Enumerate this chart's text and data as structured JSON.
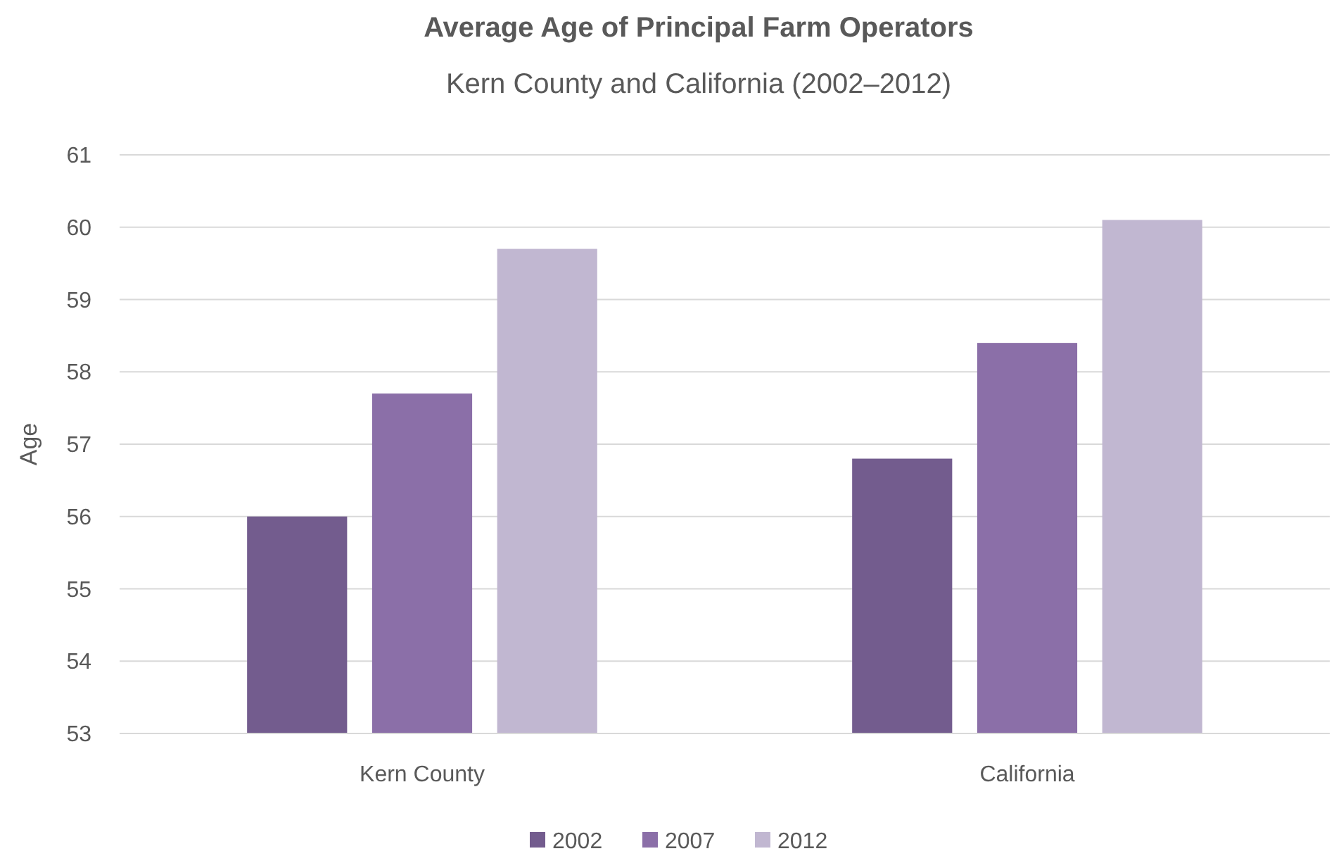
{
  "chart_data": {
    "type": "bar",
    "title": "Average Age of Principal Farm Operators",
    "subtitle": "Kern County and California (2002–2012)",
    "ylabel": "Age",
    "categories": [
      "Kern County",
      "California"
    ],
    "series": [
      {
        "name": "2002",
        "color": "#735c8e",
        "values": [
          56.0,
          56.8
        ]
      },
      {
        "name": "2007",
        "color": "#8b6fa8",
        "values": [
          57.7,
          58.4
        ]
      },
      {
        "name": "2012",
        "color": "#c1b7d1",
        "values": [
          59.7,
          60.1
        ]
      }
    ],
    "ylim": [
      53,
      61
    ],
    "yticks": [
      53,
      54,
      55,
      56,
      57,
      58,
      59,
      60,
      61
    ],
    "grid": "y",
    "legend": "bottom"
  }
}
